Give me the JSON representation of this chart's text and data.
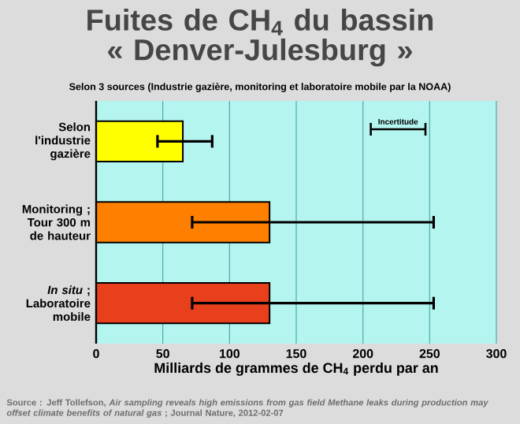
{
  "chart_data": {
    "type": "bar",
    "orientation": "horizontal",
    "title": "Fuites de CH$_{4}$  du bassin « Denver-Julesburg »",
    "subtitle": "Selon 3 sources (Industrie gazière, monitoring et laboratoire mobile par la NOAA)",
    "categories": [
      "Selon l'industrie gazière",
      "Monitoring ; Tour 300 m de hauteur",
      "*In situ* ; Laboratoire mobile"
    ],
    "values": [
      65,
      130,
      130
    ],
    "colors": [
      "#ffff00",
      "#ff7f00",
      "#e8401c"
    ],
    "errors": [
      [
        46,
        87
      ],
      [
        72,
        253
      ],
      [
        72,
        253
      ]
    ],
    "xlabel": "Milliards de grammes de CH$_{4}$ perdu par an",
    "xlim": [
      0,
      300
    ],
    "xticks": [
      0,
      50,
      100,
      150,
      200,
      250,
      300
    ],
    "grid": "x",
    "annotations": [
      "Incertitude",
      "Source : Jeff Tollefson, *Air sampling reveals high emissions from gas field Methane leaks during production may offset climate benefits of natural gas* ; Journal Nature, 2012-02-07"
    ]
  }
}
